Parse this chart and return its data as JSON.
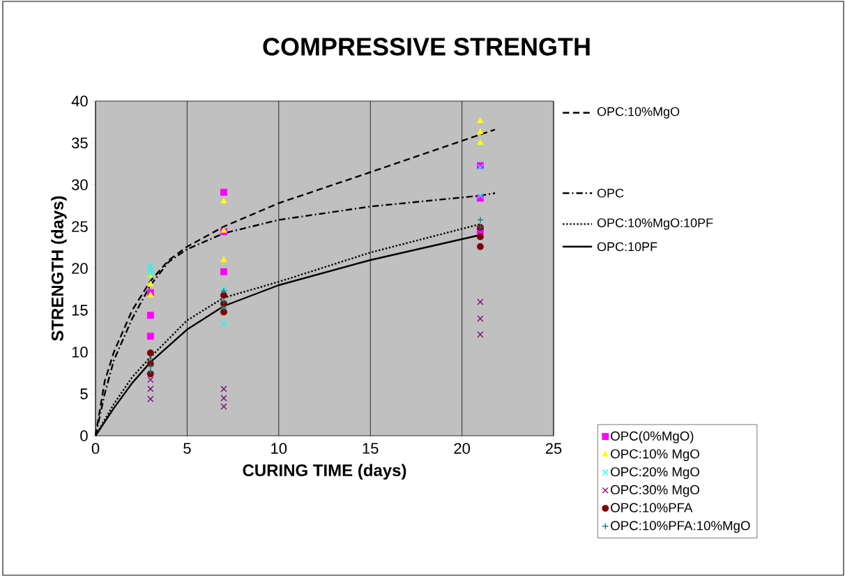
{
  "chart_data": {
    "type": "scatter",
    "title": "COMPRESSIVE STRENGTH",
    "xlabel": "CURING TIME (days)",
    "ylabel": "STRENGTH (days)",
    "xlim": [
      0,
      25
    ],
    "ylim": [
      0,
      40
    ],
    "xticks": [
      0,
      5,
      10,
      15,
      20,
      25
    ],
    "yticks": [
      0,
      5,
      10,
      15,
      20,
      25,
      30,
      35,
      40
    ],
    "grid": "x",
    "legend": "bottom right",
    "series": [
      {
        "name": "OPC(0%MgO)",
        "color": "#ff00ff",
        "marker": "square",
        "x": [
          3,
          3,
          3,
          7,
          7,
          7,
          21,
          21,
          21
        ],
        "values": [
          17.1,
          14.4,
          11.9,
          29.1,
          24.4,
          19.6,
          32.3,
          28.4,
          24.5
        ]
      },
      {
        "name": "OPC:10% MgO",
        "color": "#ffff00",
        "marker": "triangle",
        "x": [
          3,
          3,
          3,
          7,
          7,
          7,
          21,
          21,
          21
        ],
        "values": [
          19.2,
          18.1,
          16.8,
          28.0,
          24.5,
          21.0,
          37.6,
          36.3,
          35.0
        ]
      },
      {
        "name": "OPC:20% MgO",
        "color": "#00ffff",
        "marker": "cross",
        "x": [
          3,
          3,
          3,
          7,
          7,
          7,
          21,
          21
        ],
        "values": [
          20.3,
          19.8,
          19.4,
          17.5,
          15.3,
          13.4,
          32.1,
          28.7
        ]
      },
      {
        "name": "OPC:30% MgO",
        "color": "#800080",
        "marker": "cross",
        "x": [
          3,
          3,
          3,
          7,
          7,
          7,
          21,
          21,
          21
        ],
        "values": [
          6.7,
          5.6,
          4.4,
          5.6,
          4.5,
          3.5,
          16.0,
          14.0,
          12.1
        ]
      },
      {
        "name": "OPC:10%PFA",
        "color": "#800000",
        "marker": "circle",
        "x": [
          3,
          3,
          3,
          7,
          7,
          7,
          21,
          21,
          21
        ],
        "values": [
          9.9,
          8.6,
          7.4,
          16.8,
          15.8,
          14.8,
          24.9,
          23.8,
          22.6
        ]
      },
      {
        "name": "OPC:10%PFA:10%MgO",
        "color": "#008080",
        "marker": "plus",
        "x": [
          3,
          3,
          3,
          7,
          7,
          7,
          21,
          21
        ],
        "values": [
          9.2,
          8.3,
          7.7,
          17.3,
          16.1,
          15.3,
          25.8,
          24.9
        ]
      },
      {
        "name": "OPC:10%MgO",
        "type": "line",
        "color": "#000000",
        "line_style": "dashed",
        "x": [
          0,
          0.5,
          1,
          2,
          3,
          4,
          5,
          7,
          10,
          15,
          21,
          21.8
        ],
        "values": [
          0,
          6.5,
          10,
          15,
          18.5,
          21,
          22.6,
          25,
          27.8,
          31.5,
          36,
          36.6
        ]
      },
      {
        "name": "OPC",
        "type": "line",
        "color": "#000000",
        "line_style": "dashdot",
        "x": [
          0,
          0.5,
          1,
          2,
          3,
          4,
          5,
          7,
          10,
          15,
          21,
          21.8
        ],
        "values": [
          0,
          5,
          9,
          14,
          18,
          20.8,
          22.3,
          24.2,
          25.8,
          27.4,
          28.7,
          29.0
        ]
      },
      {
        "name": "OPC:10%MgO:10PF",
        "type": "line",
        "color": "#000000",
        "line_style": "dotted",
        "x": [
          0,
          1,
          2,
          3,
          5,
          7,
          10,
          15,
          21
        ],
        "values": [
          0,
          3.8,
          7,
          9.4,
          13.8,
          16.5,
          18.4,
          21.9,
          25.3
        ]
      },
      {
        "name": "OPC:10PF",
        "type": "line",
        "color": "#000000",
        "line_style": "solid",
        "x": [
          0,
          1,
          2,
          3,
          5,
          7,
          10,
          15,
          21
        ],
        "values": [
          0,
          3.3,
          6.3,
          8.8,
          12.7,
          15.5,
          18.0,
          21.0,
          24.0
        ]
      }
    ]
  }
}
